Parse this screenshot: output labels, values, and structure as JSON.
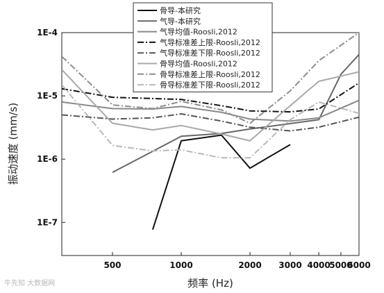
{
  "chart_data": {
    "type": "line",
    "xlabel": "频率 (Hz)",
    "ylabel": "振动速度 (mm/s)",
    "x_scale": "log",
    "y_scale": "log",
    "xlim": [
      300,
      6000
    ],
    "ylim": [
      3e-08,
      0.0001
    ],
    "x_ticks": [
      500,
      1000,
      2000,
      3000,
      4000,
      5000,
      6000
    ],
    "x_tick_labels": [
      "500",
      "1000",
      "2000",
      "3000",
      "4000",
      "5000",
      "6000"
    ],
    "y_ticks": [
      1e-07,
      1e-06,
      1e-05,
      0.0001
    ],
    "y_tick_labels": [
      "1E-7",
      "1E-6",
      "1E-5",
      "1E-4"
    ],
    "legend_position": "top-center",
    "series": [
      {
        "name": "骨导-本研究",
        "color": "#111111",
        "dash": "solid",
        "width": 2,
        "points": [
          [
            750,
            7.7e-08
          ],
          [
            1000,
            1.95e-06
          ],
          [
            1500,
            2.4e-06
          ],
          [
            2000,
            7.2e-07
          ],
          [
            3000,
            1.7e-06
          ]
        ]
      },
      {
        "name": "气导-本研究",
        "color": "#666666",
        "dash": "solid",
        "width": 2,
        "points": [
          [
            500,
            6.2e-07
          ],
          [
            1000,
            2.3e-06
          ],
          [
            1500,
            2.55e-06
          ],
          [
            2000,
            3e-06
          ],
          [
            4000,
            4.2e-06
          ],
          [
            5000,
            2.2e-05
          ],
          [
            6000,
            4.5e-05
          ]
        ]
      },
      {
        "name": "气导均值-Roosli,2012",
        "color": "#888888",
        "dash": "solid",
        "width": 2,
        "points": [
          [
            300,
            8e-06
          ],
          [
            500,
            6.3e-06
          ],
          [
            750,
            6.2e-06
          ],
          [
            1000,
            6.8e-06
          ],
          [
            1500,
            5.5e-06
          ],
          [
            2000,
            4.3e-06
          ],
          [
            3000,
            4e-06
          ],
          [
            4000,
            4.5e-06
          ],
          [
            6000,
            8.5e-06
          ]
        ]
      },
      {
        "name": "气导标准差上限-Roosli,2012",
        "color": "#111111",
        "dash": "dashdot",
        "width": 2,
        "points": [
          [
            300,
            1.3e-05
          ],
          [
            500,
            9.5e-06
          ],
          [
            1000,
            8.8e-06
          ],
          [
            1500,
            7e-06
          ],
          [
            2000,
            5.8e-06
          ],
          [
            3000,
            5.6e-06
          ],
          [
            4000,
            6.2e-06
          ],
          [
            6000,
            1.6e-05
          ]
        ]
      },
      {
        "name": "气导标准差下限-Roosli,2012",
        "color": "#555555",
        "dash": "dashdot",
        "width": 2,
        "points": [
          [
            300,
            5e-06
          ],
          [
            500,
            4.3e-06
          ],
          [
            750,
            4.5e-06
          ],
          [
            1000,
            5.2e-06
          ],
          [
            1500,
            4e-06
          ],
          [
            2000,
            3.2e-06
          ],
          [
            3000,
            2.8e-06
          ],
          [
            4000,
            3.2e-06
          ],
          [
            6000,
            4.6e-06
          ]
        ]
      },
      {
        "name": "骨导均值-Roosli,2012",
        "color": "#a8a8a8",
        "dash": "solid",
        "width": 2,
        "points": [
          [
            300,
            2.6e-05
          ],
          [
            500,
            3.7e-06
          ],
          [
            750,
            2.9e-06
          ],
          [
            1000,
            3.4e-06
          ],
          [
            1500,
            2.5e-06
          ],
          [
            2000,
            1.95e-06
          ],
          [
            3000,
            7e-06
          ],
          [
            4000,
            1.7e-05
          ],
          [
            6000,
            2.4e-05
          ]
        ]
      },
      {
        "name": "骨导标准差上限-Roosli,2012",
        "color": "#8c8c8c",
        "dash": "dashdot",
        "width": 2,
        "points": [
          [
            300,
            4.2e-05
          ],
          [
            500,
            7.2e-06
          ],
          [
            750,
            6.3e-06
          ],
          [
            1000,
            8.2e-06
          ],
          [
            1500,
            6e-06
          ],
          [
            2000,
            3.7e-06
          ],
          [
            3000,
            1.2e-05
          ],
          [
            4000,
            3.6e-05
          ],
          [
            6000,
            0.0001
          ]
        ]
      },
      {
        "name": "骨导标准差下限-Roosli,2012",
        "color": "#b8b8b8",
        "dash": "dashdot",
        "width": 2,
        "points": [
          [
            300,
            1.5e-05
          ],
          [
            500,
            1.65e-06
          ],
          [
            750,
            1.35e-06
          ],
          [
            1000,
            1.4e-06
          ],
          [
            1500,
            1.05e-06
          ],
          [
            2000,
            1.05e-06
          ],
          [
            3000,
            4.2e-06
          ],
          [
            4000,
            8e-06
          ],
          [
            6000,
            5.3e-06
          ]
        ]
      }
    ]
  },
  "watermark_text": "牛先知 大数据网"
}
